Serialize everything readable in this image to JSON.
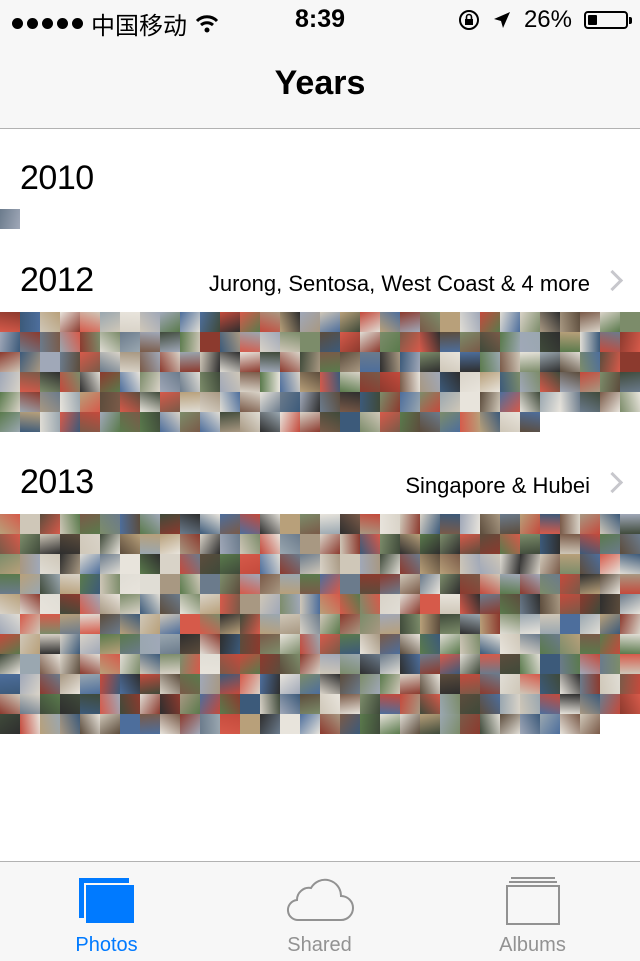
{
  "status_bar": {
    "carrier": "中国移动",
    "time": "8:39",
    "battery_text": "26%",
    "battery_level": 0.26
  },
  "nav": {
    "title": "Years"
  },
  "years": [
    {
      "year": "2010",
      "places": "",
      "photo_count": 1
    },
    {
      "year": "2012",
      "places": "Jurong, Sentosa, West Coast & 4 more",
      "photo_count": 187
    },
    {
      "year": "2013",
      "places": "Singapore & Hubei",
      "photo_count": 350
    }
  ],
  "tabs": [
    {
      "label": "Photos",
      "icon": "photos-icon",
      "active": true
    },
    {
      "label": "Shared",
      "icon": "cloud-icon",
      "active": false
    },
    {
      "label": "Albums",
      "icon": "albums-icon",
      "active": false
    }
  ],
  "colors": {
    "accent": "#007aff",
    "inactive": "#929292",
    "bar_bg": "#f7f7f7"
  }
}
